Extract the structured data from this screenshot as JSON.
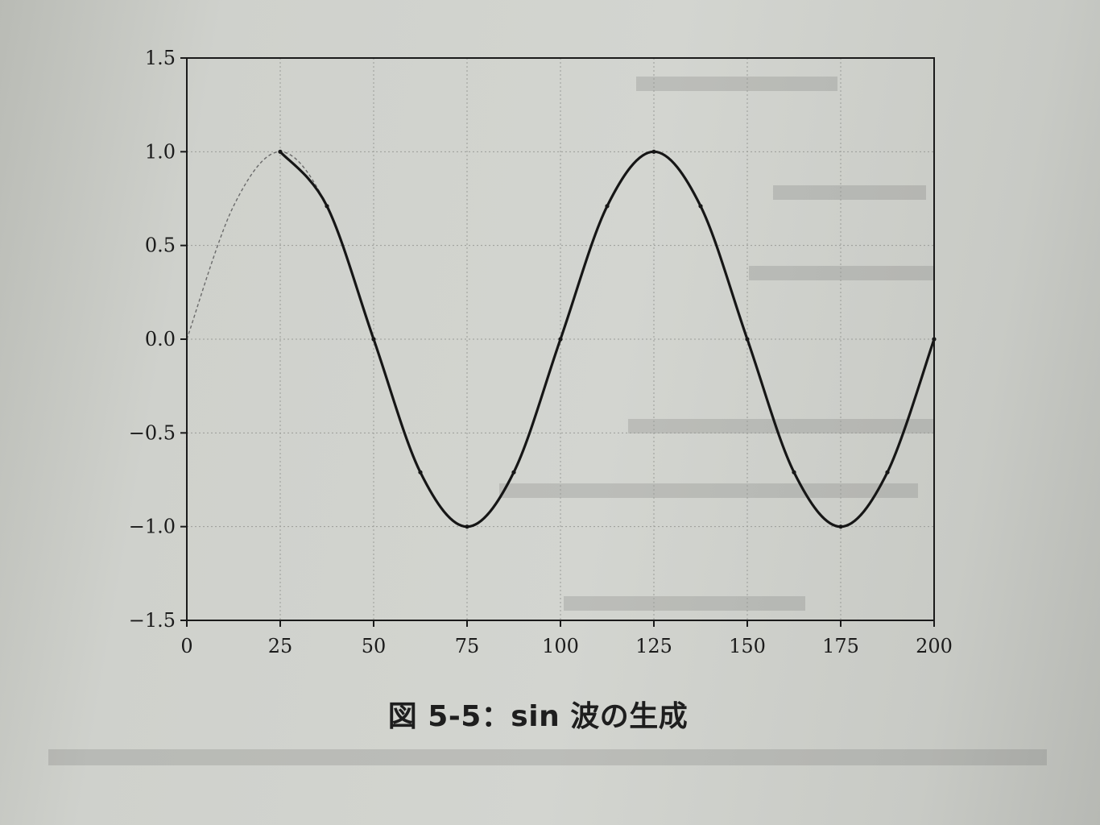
{
  "caption": "図 5-5：sin 波の生成",
  "chart_data": {
    "type": "line",
    "title": "",
    "xlabel": "",
    "ylabel": "",
    "xlim": [
      0,
      200
    ],
    "ylim": [
      -1.5,
      1.5
    ],
    "x_ticks": [
      0,
      25,
      50,
      75,
      100,
      125,
      150,
      175,
      200
    ],
    "y_ticks": [
      1.5,
      1.0,
      0.5,
      0.0,
      -0.5,
      -1.0,
      -1.5
    ],
    "y_tick_labels": [
      "1.5",
      "1.0",
      "0.5",
      "0.0",
      "−0.5",
      "−1.0",
      "−1.5"
    ],
    "grid": true,
    "series": [
      {
        "style": "thin dashed",
        "color": "#6b6b6b",
        "x": [
          0,
          12.5,
          25,
          37.5,
          50,
          62.5,
          75,
          87.5,
          100,
          112.5,
          125,
          137.5,
          150,
          162.5,
          175,
          187.5,
          200
        ],
        "y": [
          0,
          0.71,
          1.0,
          0.71,
          0,
          -0.71,
          -1.0,
          -0.71,
          0,
          0.71,
          1.0,
          0.71,
          0,
          -0.71,
          -1.0,
          -0.71,
          0
        ]
      },
      {
        "style": "thick solid with markers",
        "color": "#161616",
        "x": [
          25,
          37.5,
          50,
          62.5,
          75,
          87.5,
          100,
          112.5,
          125,
          137.5,
          150,
          162.5,
          175,
          187.5,
          200
        ],
        "y": [
          1.0,
          0.71,
          0,
          -0.71,
          -1.0,
          -0.71,
          0,
          0.71,
          1.0,
          0.71,
          0,
          -0.71,
          -1.0,
          -0.71,
          0
        ]
      }
    ]
  }
}
